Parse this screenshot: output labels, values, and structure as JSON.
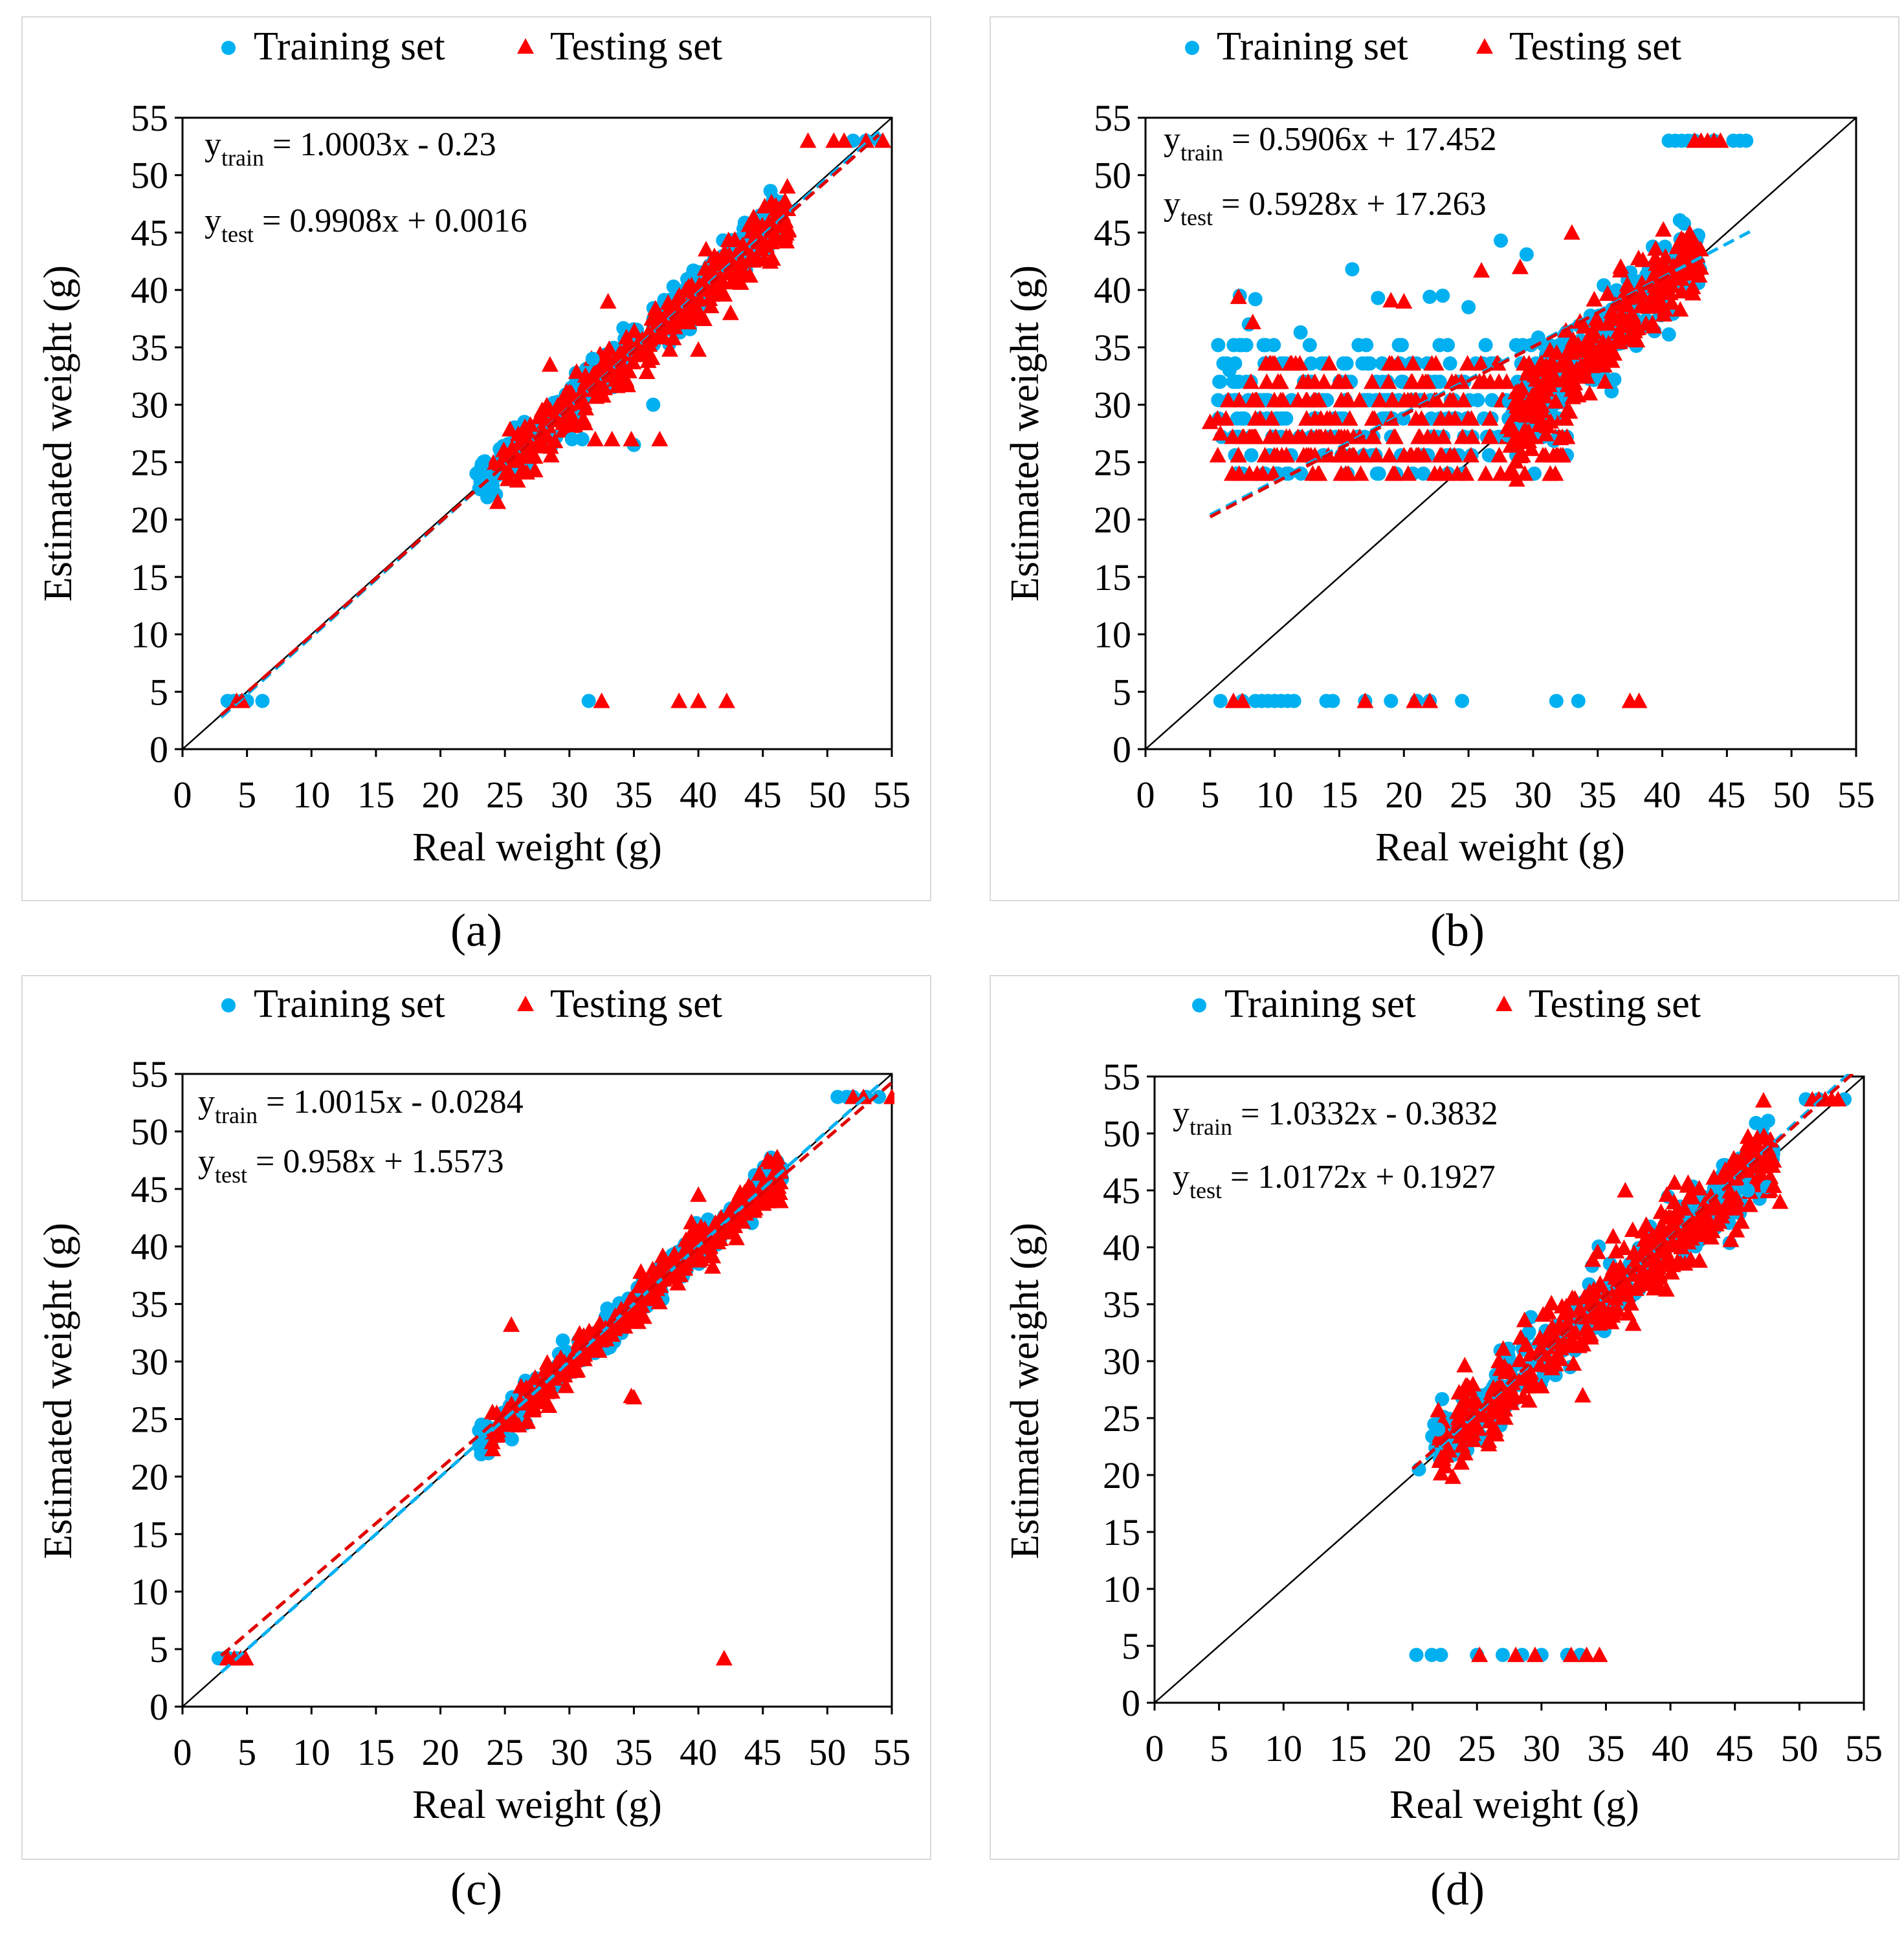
{
  "colors": {
    "train": "#00b0f0",
    "test": "#ff0000",
    "train_fit": "#00b0f0",
    "test_fit": "#e00000"
  },
  "chart_data": [
    {
      "type": "scatter",
      "panel": "a",
      "caption": "(a)",
      "xlabel": "Real weight (g)",
      "ylabel": "Estimated weight (g)",
      "xlim": [
        0,
        55
      ],
      "ylim": [
        0,
        55
      ],
      "xticks": [
        "0",
        "5",
        "10",
        "15",
        "20",
        "25",
        "30",
        "35",
        "40",
        "45",
        "50",
        "55"
      ],
      "yticks": [
        "0",
        "5",
        "10",
        "15",
        "20",
        "25",
        "30",
        "35",
        "40",
        "45",
        "50",
        "55"
      ],
      "legend": {
        "train": "Training set",
        "test": "Testing set",
        "position": "top"
      },
      "equations": {
        "train_main": "y",
        "train_sub": "train",
        "train_rest": " = 1.0003x - 0.23",
        "test_main": "y",
        "test_sub": "test",
        "test_rest": " = 0.9908x + 0.0016"
      },
      "fits": {
        "train": {
          "slope": 1.0003,
          "intercept": -0.23,
          "x_range": [
            3,
            54
          ]
        },
        "test": {
          "slope": 0.9908,
          "intercept": 0.0016,
          "x_range": [
            3,
            54
          ]
        }
      },
      "clusters": [
        {
          "series": "train",
          "n": 320,
          "x_range": [
            23,
            46.5
          ],
          "slope": 1.0,
          "intercept": 0.2,
          "spread": 1.7
        },
        {
          "series": "test",
          "n": 330,
          "x_range": [
            24,
            47
          ],
          "slope": 0.99,
          "intercept": 0.0,
          "spread": 2.0
        }
      ],
      "train_points": [
        [
          3.5,
          4.2
        ],
        [
          4.0,
          4.2
        ],
        [
          4.6,
          4.2
        ],
        [
          5.0,
          4.2
        ],
        [
          6.2,
          4.2
        ],
        [
          31.5,
          4.2
        ],
        [
          52.0,
          53
        ],
        [
          53.0,
          53
        ],
        [
          54.0,
          53
        ],
        [
          23,
          24.2
        ],
        [
          23.2,
          24.8
        ],
        [
          30.2,
          27
        ],
        [
          31,
          27
        ],
        [
          31.8,
          34
        ],
        [
          35,
          26.5
        ],
        [
          22.8,
          24
        ],
        [
          36.5,
          30
        ]
      ],
      "test_points": [
        [
          4.2,
          4.2
        ],
        [
          4.6,
          4.2
        ],
        [
          32.5,
          4.2
        ],
        [
          38.5,
          4.2
        ],
        [
          40.0,
          4.2
        ],
        [
          42.2,
          4.2
        ],
        [
          48.5,
          53
        ],
        [
          50.5,
          53
        ],
        [
          51.3,
          53
        ],
        [
          53,
          53
        ],
        [
          54.3,
          53
        ],
        [
          32,
          27
        ],
        [
          33.3,
          27
        ],
        [
          34.8,
          27
        ],
        [
          37,
          27
        ],
        [
          28.5,
          33.5
        ],
        [
          33,
          39
        ],
        [
          40,
          34.8
        ],
        [
          42.5,
          38
        ]
      ]
    },
    {
      "type": "scatter",
      "panel": "b",
      "caption": "(b)",
      "xlabel": "Real weight (g)",
      "ylabel": "Estimated weight (g)",
      "xlim": [
        0,
        55
      ],
      "ylim": [
        0,
        55
      ],
      "xticks": [
        "0",
        "5",
        "10",
        "15",
        "20",
        "25",
        "30",
        "35",
        "40",
        "45",
        "50",
        "55"
      ],
      "yticks": [
        "0",
        "5",
        "10",
        "15",
        "20",
        "25",
        "30",
        "35",
        "40",
        "45",
        "50",
        "55"
      ],
      "legend": {
        "train": "Training set",
        "test": "Testing set",
        "position": "top"
      },
      "equations": {
        "train_main": "y",
        "train_sub": "train",
        "train_rest": " = 0.5906x + 17.452",
        "test_main": "y",
        "test_sub": "test",
        "test_rest": " = 0.5928x + 17.263"
      },
      "fits": {
        "train": {
          "slope": 0.5906,
          "intercept": 17.452,
          "x_range": [
            5,
            47
          ]
        },
        "test": {
          "slope": 0.5928,
          "intercept": 17.263,
          "x_range": [
            5,
            41
          ]
        }
      },
      "clusters": [
        {
          "series": "train",
          "n": 260,
          "x_range": [
            5.5,
            33
          ],
          "y_range": [
            23.8,
            35
          ],
          "mode": "band"
        },
        {
          "series": "test",
          "n": 260,
          "x_range": [
            5.5,
            33
          ],
          "y_range": [
            23.8,
            34
          ],
          "mode": "band"
        },
        {
          "series": "train",
          "n": 200,
          "x_range": [
            28,
            43
          ],
          "slope": 1.05,
          "intercept": -1.5,
          "spread": 3.0
        },
        {
          "series": "test",
          "n": 260,
          "x_range": [
            28,
            43
          ],
          "slope": 1.05,
          "intercept": -1.5,
          "spread": 3.0
        }
      ],
      "train_points": [
        [
          5.8,
          4.2
        ],
        [
          7.5,
          4.2
        ],
        [
          8.5,
          4.2
        ],
        [
          9,
          4.2
        ],
        [
          9.5,
          4.2
        ],
        [
          10,
          4.2
        ],
        [
          10.5,
          4.2
        ],
        [
          11,
          4.2
        ],
        [
          11.5,
          4.2
        ],
        [
          14,
          4.2
        ],
        [
          14.5,
          4.2
        ],
        [
          17,
          4.2
        ],
        [
          19,
          4.2
        ],
        [
          21,
          4.2
        ],
        [
          22,
          4.2
        ],
        [
          24.5,
          4.2
        ],
        [
          31.8,
          4.2
        ],
        [
          33.5,
          4.2
        ],
        [
          40.5,
          53
        ],
        [
          41,
          53
        ],
        [
          41.5,
          53
        ],
        [
          42,
          53
        ],
        [
          42.5,
          53
        ],
        [
          44,
          53
        ],
        [
          45.5,
          53
        ],
        [
          46,
          53
        ],
        [
          46.5,
          53
        ],
        [
          7.3,
          39.5
        ],
        [
          8.5,
          39.2
        ],
        [
          8,
          37
        ],
        [
          16,
          41.8
        ],
        [
          18,
          39.3
        ],
        [
          22,
          39.4
        ],
        [
          27.5,
          44.3
        ],
        [
          29.5,
          43.1
        ],
        [
          12,
          36.3
        ],
        [
          6.5,
          33
        ],
        [
          23,
          39.5
        ],
        [
          25,
          38.5
        ]
      ],
      "test_points": [
        [
          6.8,
          4.2
        ],
        [
          7.5,
          4.2
        ],
        [
          17,
          4.2
        ],
        [
          20.8,
          4.2
        ],
        [
          22,
          4.2
        ],
        [
          37.5,
          4.2
        ],
        [
          38.2,
          4.2
        ],
        [
          42.5,
          53
        ],
        [
          43,
          53
        ],
        [
          43.5,
          53
        ],
        [
          44,
          53
        ],
        [
          44.5,
          53
        ],
        [
          7.2,
          39.4
        ],
        [
          8.3,
          37.2
        ],
        [
          19,
          39.1
        ],
        [
          20,
          39
        ],
        [
          29,
          42
        ],
        [
          33,
          45
        ],
        [
          26,
          41.7
        ],
        [
          5,
          28.5
        ],
        [
          5.8,
          27.5
        ]
      ]
    },
    {
      "type": "scatter",
      "panel": "c",
      "caption": "(c)",
      "xlabel": "Real weight (g)",
      "ylabel": "Estimated weight (g)",
      "xlim": [
        0,
        55
      ],
      "ylim": [
        0,
        55
      ],
      "xticks": [
        "0",
        "5",
        "10",
        "15",
        "20",
        "25",
        "30",
        "35",
        "40",
        "45",
        "50",
        "55"
      ],
      "yticks": [
        "0",
        "5",
        "10",
        "15",
        "20",
        "25",
        "30",
        "35",
        "40",
        "45",
        "50",
        "55"
      ],
      "legend": {
        "train": "Training set",
        "test": "Testing set",
        "position": "top"
      },
      "equations": {
        "train_main": "y",
        "train_sub": "train",
        "train_rest": " = 1.0015x - 0.0284",
        "test_main": "y",
        "test_sub": "test",
        "test_rest": " = 0.958x + 1.5573"
      },
      "fits": {
        "train": {
          "slope": 1.0015,
          "intercept": -0.0284,
          "x_range": [
            3,
            54
          ]
        },
        "test": {
          "slope": 0.958,
          "intercept": 1.5573,
          "x_range": [
            3,
            55
          ]
        }
      },
      "clusters": [
        {
          "series": "train",
          "n": 300,
          "x_range": [
            23,
            46.5
          ],
          "slope": 1.0,
          "intercept": 0.0,
          "spread": 1.3
        },
        {
          "series": "test",
          "n": 320,
          "x_range": [
            24,
            46.5
          ],
          "slope": 0.99,
          "intercept": 0.2,
          "spread": 1.5
        }
      ],
      "train_points": [
        [
          2.8,
          4.2
        ],
        [
          3.2,
          4.2
        ],
        [
          3.6,
          4.2
        ],
        [
          4.2,
          4.2
        ],
        [
          23,
          24
        ],
        [
          50.8,
          53
        ],
        [
          51.5,
          53
        ],
        [
          52,
          53
        ],
        [
          53,
          53
        ],
        [
          54,
          53
        ],
        [
          23.5,
          24.3
        ]
      ],
      "test_points": [
        [
          3.5,
          4.2
        ],
        [
          4.0,
          4.2
        ],
        [
          4.5,
          4.2
        ],
        [
          4.9,
          4.2
        ],
        [
          42,
          4.2
        ],
        [
          52,
          53
        ],
        [
          52.8,
          53
        ],
        [
          55,
          53
        ],
        [
          25.5,
          33.2
        ],
        [
          34.8,
          27
        ],
        [
          35,
          26.9
        ],
        [
          40,
          44.5
        ]
      ]
    },
    {
      "type": "scatter",
      "panel": "d",
      "caption": "(d)",
      "xlabel": "Real weight (g)",
      "ylabel": "Estimated weight (g)",
      "xlim": [
        0,
        55
      ],
      "ylim": [
        0,
        55
      ],
      "xticks": [
        "0",
        "5",
        "10",
        "15",
        "20",
        "25",
        "30",
        "35",
        "40",
        "45",
        "50",
        "55"
      ],
      "yticks": [
        "0",
        "5",
        "10",
        "15",
        "20",
        "25",
        "30",
        "35",
        "40",
        "45",
        "50",
        "55"
      ],
      "legend": {
        "train": "Training set",
        "test": "Testing set",
        "position": "top"
      },
      "equations": {
        "train_main": "y",
        "train_sub": "train",
        "train_rest": " = 1.0332x - 0.3832",
        "test_main": "y",
        "test_sub": "test",
        "test_rest": " = 1.0172x + 0.1927"
      },
      "fits": {
        "train": {
          "slope": 1.0332,
          "intercept": -0.3832,
          "x_range": [
            20,
            54
          ]
        },
        "test": {
          "slope": 1.0172,
          "intercept": 0.1927,
          "x_range": [
            20,
            55
          ]
        }
      },
      "clusters": [
        {
          "series": "train",
          "n": 320,
          "x_range": [
            21.5,
            48
          ],
          "slope": 1.0,
          "intercept": 0.5,
          "spread": 2.6
        },
        {
          "series": "test",
          "n": 400,
          "x_range": [
            22,
            48
          ],
          "slope": 1.0,
          "intercept": 0.5,
          "spread": 3.0
        }
      ],
      "train_points": [
        [
          20.3,
          4.2
        ],
        [
          21.5,
          4.2
        ],
        [
          22.2,
          4.2
        ],
        [
          25,
          4.2
        ],
        [
          27,
          4.2
        ],
        [
          28.5,
          4.2
        ],
        [
          30,
          4.2
        ],
        [
          32,
          4.2
        ],
        [
          33,
          4.2
        ],
        [
          50.5,
          53
        ],
        [
          51.5,
          53
        ],
        [
          53.5,
          53
        ],
        [
          20.5,
          20.5
        ],
        [
          22,
          24
        ],
        [
          46,
          45
        ],
        [
          47.5,
          45.3
        ]
      ],
      "test_points": [
        [
          25.2,
          4.2
        ],
        [
          28,
          4.2
        ],
        [
          29.5,
          4.2
        ],
        [
          32.3,
          4.2
        ],
        [
          33.5,
          4.2
        ],
        [
          34.5,
          4.2
        ],
        [
          51,
          53
        ],
        [
          51.5,
          53
        ],
        [
          52,
          53
        ],
        [
          52.5,
          53
        ],
        [
          53,
          53
        ],
        [
          33.2,
          27
        ],
        [
          22,
          25.7
        ],
        [
          48.5,
          44
        ],
        [
          48,
          45.4
        ],
        [
          36.5,
          45
        ]
      ]
    }
  ]
}
